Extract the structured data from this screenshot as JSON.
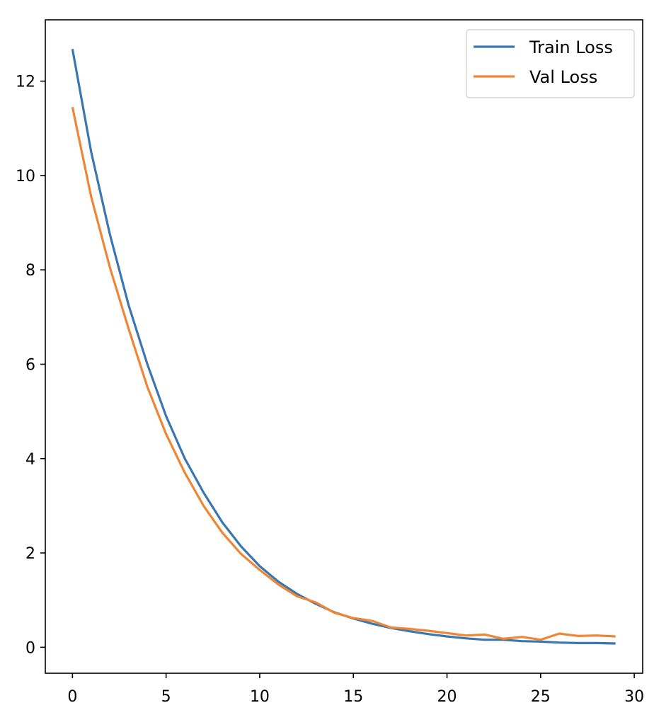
{
  "chart_data": {
    "type": "line",
    "title": "",
    "xlabel": "",
    "ylabel": "",
    "xlim": [
      -1.45,
      30.45
    ],
    "ylim": [
      -0.55,
      13.3
    ],
    "xticks": [
      0,
      5,
      10,
      15,
      20,
      25,
      30
    ],
    "yticks": [
      0,
      2,
      4,
      6,
      8,
      10,
      12
    ],
    "grid": false,
    "legend_position": "top-right",
    "x": [
      0,
      1,
      2,
      3,
      4,
      5,
      6,
      7,
      8,
      9,
      10,
      11,
      12,
      13,
      14,
      15,
      16,
      17,
      18,
      19,
      20,
      21,
      22,
      23,
      24,
      25,
      26,
      27,
      28,
      29
    ],
    "series": [
      {
        "name": "Train Loss",
        "color": "#3a76af",
        "values": [
          12.68,
          10.5,
          8.75,
          7.25,
          6.0,
          4.9,
          4.0,
          3.28,
          2.65,
          2.14,
          1.72,
          1.39,
          1.13,
          0.92,
          0.74,
          0.61,
          0.5,
          0.41,
          0.34,
          0.28,
          0.23,
          0.19,
          0.16,
          0.16,
          0.13,
          0.12,
          0.1,
          0.09,
          0.09,
          0.08
        ]
      },
      {
        "name": "Val Loss",
        "color": "#ef8636",
        "values": [
          11.45,
          9.55,
          8.05,
          6.75,
          5.52,
          4.52,
          3.7,
          3.0,
          2.43,
          1.98,
          1.64,
          1.33,
          1.08,
          0.95,
          0.73,
          0.62,
          0.56,
          0.42,
          0.39,
          0.35,
          0.3,
          0.25,
          0.27,
          0.18,
          0.22,
          0.16,
          0.29,
          0.24,
          0.25,
          0.23
        ]
      }
    ]
  }
}
